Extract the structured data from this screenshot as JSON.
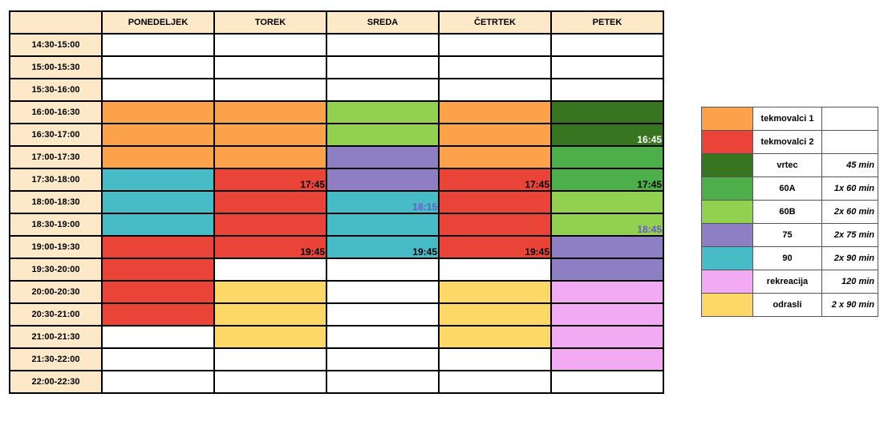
{
  "days": [
    "PONEDELJEK",
    "TOREK",
    "SREDA",
    "ČETRTEK",
    "PETEK"
  ],
  "colors": {
    "t1": "#fba24a",
    "t2": "#e94437",
    "vrtec": "#377521",
    "a60": "#4caf4a",
    "b60": "#92d050",
    "g75": "#8e7ec3",
    "g90": "#48bcc6",
    "rek": "#f2abf2",
    "odr": "#fdd867",
    "none": "#ffffff"
  },
  "rows": [
    {
      "time": "14:30-15:00",
      "cells": [
        {
          "c": "none"
        },
        {
          "c": "none"
        },
        {
          "c": "none"
        },
        {
          "c": "none"
        },
        {
          "c": "none"
        }
      ]
    },
    {
      "time": "15:00-15:30",
      "cells": [
        {
          "c": "none"
        },
        {
          "c": "none"
        },
        {
          "c": "none"
        },
        {
          "c": "none"
        },
        {
          "c": "none"
        }
      ]
    },
    {
      "time": "15:30-16:00",
      "cells": [
        {
          "c": "none"
        },
        {
          "c": "none"
        },
        {
          "c": "none"
        },
        {
          "c": "none"
        },
        {
          "c": "none"
        }
      ]
    },
    {
      "time": "16:00-16:30",
      "cells": [
        {
          "c": "t1"
        },
        {
          "c": "t1"
        },
        {
          "c": "b60"
        },
        {
          "c": "t1"
        },
        {
          "c": "vrtec"
        }
      ]
    },
    {
      "time": "16:30-17:00",
      "cells": [
        {
          "c": "t1"
        },
        {
          "c": "t1"
        },
        {
          "c": "b60"
        },
        {
          "c": "t1"
        },
        {
          "c": "vrtec",
          "t": "16:45",
          "tc": "#ffffff"
        }
      ]
    },
    {
      "time": "17:00-17:30",
      "cells": [
        {
          "c": "t1"
        },
        {
          "c": "t1"
        },
        {
          "c": "g75"
        },
        {
          "c": "t1"
        },
        {
          "c": "a60"
        }
      ]
    },
    {
      "time": "17:30-18:00",
      "cells": [
        {
          "c": "g90"
        },
        {
          "c": "t2",
          "t": "17:45"
        },
        {
          "c": "g75"
        },
        {
          "c": "t2",
          "t": "17:45"
        },
        {
          "c": "a60",
          "t": "17:45"
        }
      ]
    },
    {
      "time": "18:00-18:30",
      "cells": [
        {
          "c": "g90"
        },
        {
          "c": "t2"
        },
        {
          "c": "g90",
          "t": "18:15",
          "tc": "#6a5acd"
        },
        {
          "c": "t2"
        },
        {
          "c": "b60"
        }
      ]
    },
    {
      "time": "18:30-19:00",
      "cells": [
        {
          "c": "g90"
        },
        {
          "c": "t2"
        },
        {
          "c": "g90"
        },
        {
          "c": "t2"
        },
        {
          "c": "b60",
          "t": "18:45",
          "tc": "#6a5acd"
        }
      ]
    },
    {
      "time": "19:00-19:30",
      "cells": [
        {
          "c": "t2"
        },
        {
          "c": "t2",
          "t": "19:45"
        },
        {
          "c": "g90",
          "t": "19:45"
        },
        {
          "c": "t2",
          "t": "19:45"
        },
        {
          "c": "g75"
        }
      ]
    },
    {
      "time": "19:30-20:00",
      "cells": [
        {
          "c": "t2"
        },
        {
          "c": "none"
        },
        {
          "c": "none"
        },
        {
          "c": "none"
        },
        {
          "c": "g75"
        }
      ]
    },
    {
      "time": "20:00-20:30",
      "cells": [
        {
          "c": "t2"
        },
        {
          "c": "odr"
        },
        {
          "c": "none"
        },
        {
          "c": "odr"
        },
        {
          "c": "rek"
        }
      ]
    },
    {
      "time": "20:30-21:00",
      "cells": [
        {
          "c": "t2"
        },
        {
          "c": "odr"
        },
        {
          "c": "none"
        },
        {
          "c": "odr"
        },
        {
          "c": "rek"
        }
      ]
    },
    {
      "time": "21:00-21:30",
      "cells": [
        {
          "c": "none"
        },
        {
          "c": "odr"
        },
        {
          "c": "none"
        },
        {
          "c": "odr"
        },
        {
          "c": "rek"
        }
      ]
    },
    {
      "time": "21:30-22:00",
      "cells": [
        {
          "c": "none"
        },
        {
          "c": "none"
        },
        {
          "c": "none"
        },
        {
          "c": "none"
        },
        {
          "c": "rek"
        }
      ]
    },
    {
      "time": "22:00-22:30",
      "cells": [
        {
          "c": "none"
        },
        {
          "c": "none"
        },
        {
          "c": "none"
        },
        {
          "c": "none"
        },
        {
          "c": "none"
        }
      ]
    }
  ],
  "legend": [
    {
      "c": "t1",
      "name": "tekmovalci 1",
      "dur": ""
    },
    {
      "c": "t2",
      "name": "tekmovalci 2",
      "dur": ""
    },
    {
      "c": "vrtec",
      "name": "vrtec",
      "dur": "45 min"
    },
    {
      "c": "a60",
      "name": "60A",
      "dur": "1x 60 min"
    },
    {
      "c": "b60",
      "name": "60B",
      "dur": "2x 60 min"
    },
    {
      "c": "g75",
      "name": "75",
      "dur": "2x 75 min"
    },
    {
      "c": "g90",
      "name": "90",
      "dur": "2x 90 min"
    },
    {
      "c": "rek",
      "name": "rekreacija",
      "dur": "120 min"
    },
    {
      "c": "odr",
      "name": "odrasli",
      "dur": "2 x 90 min"
    }
  ]
}
